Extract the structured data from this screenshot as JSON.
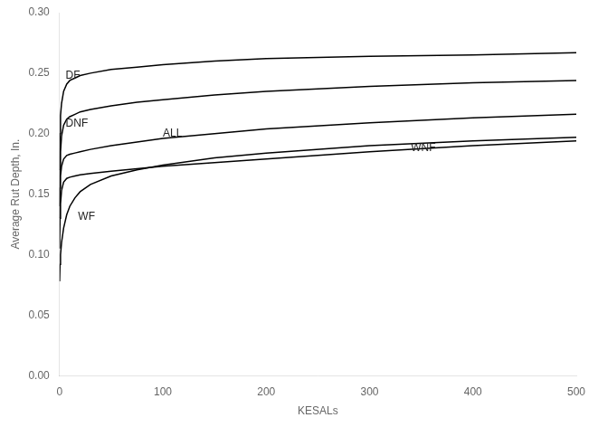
{
  "chart_data": {
    "type": "line",
    "title": "",
    "xlabel": "KESALs",
    "ylabel": "Average Rut Depth, In.",
    "xlim": [
      0,
      500
    ],
    "ylim": [
      0.0,
      0.3
    ],
    "xticks": [
      0,
      100,
      200,
      300,
      400,
      500
    ],
    "yticks": [
      {
        "value": 0,
        "label": "0.00"
      },
      0.05,
      {
        "value": 0.1,
        "label": "0.10"
      },
      0.15,
      {
        "value": 0.2,
        "label": "0.20"
      },
      0.25,
      {
        "value": 0.3,
        "label": "0.30"
      }
    ],
    "grid": false,
    "series": [
      {
        "name": "DF",
        "color": "#000000",
        "x": [
          0.1,
          0.5,
          1,
          2,
          4,
          7,
          10,
          15,
          20,
          30,
          50,
          75,
          100,
          150,
          200,
          300,
          400,
          500
        ],
        "values": [
          0.17,
          0.2,
          0.215,
          0.225,
          0.235,
          0.241,
          0.244,
          0.246,
          0.248,
          0.25,
          0.253,
          0.255,
          0.257,
          0.26,
          0.262,
          0.264,
          0.265,
          0.267
        ]
      },
      {
        "name": "DNF",
        "color": "#000000",
        "x": [
          0.1,
          0.5,
          1,
          2,
          4,
          7,
          10,
          15,
          20,
          30,
          50,
          75,
          100,
          150,
          200,
          300,
          400,
          500
        ],
        "values": [
          0.14,
          0.17,
          0.185,
          0.198,
          0.207,
          0.212,
          0.214,
          0.216,
          0.218,
          0.22,
          0.223,
          0.226,
          0.228,
          0.232,
          0.235,
          0.239,
          0.242,
          0.244
        ]
      },
      {
        "name": "ALL",
        "color": "#000000",
        "x": [
          0.1,
          0.5,
          1,
          2,
          4,
          7,
          10,
          15,
          20,
          30,
          50,
          75,
          100,
          150,
          200,
          300,
          400,
          500
        ],
        "values": [
          0.13,
          0.155,
          0.165,
          0.173,
          0.179,
          0.182,
          0.183,
          0.184,
          0.185,
          0.187,
          0.19,
          0.193,
          0.196,
          0.2,
          0.204,
          0.209,
          0.213,
          0.216
        ]
      },
      {
        "name": "WNF",
        "color": "#000000",
        "x": [
          0.1,
          0.5,
          1,
          2,
          4,
          7,
          10,
          15,
          20,
          30,
          50,
          75,
          100,
          150,
          200,
          250,
          300,
          400,
          500
        ],
        "values": [
          0.105,
          0.13,
          0.142,
          0.153,
          0.16,
          0.163,
          0.164,
          0.165,
          0.166,
          0.167,
          0.169,
          0.171,
          0.173,
          0.176,
          0.179,
          0.182,
          0.185,
          0.19,
          0.194
        ]
      },
      {
        "name": "WF",
        "color": "#000000",
        "x": [
          0.1,
          0.5,
          1,
          2,
          4,
          7,
          10,
          15,
          20,
          30,
          50,
          75,
          100,
          150,
          200,
          300,
          400,
          500
        ],
        "values": [
          0.078,
          0.092,
          0.1,
          0.11,
          0.122,
          0.133,
          0.14,
          0.147,
          0.152,
          0.158,
          0.165,
          0.17,
          0.174,
          0.18,
          0.184,
          0.19,
          0.194,
          0.197
        ]
      }
    ],
    "annotations": [
      {
        "text": "DF",
        "x": 6,
        "y": 0.248
      },
      {
        "text": "DNF",
        "x": 6,
        "y": 0.208
      },
      {
        "text": "ALL",
        "x": 100,
        "y": 0.2
      },
      {
        "text": "WNF",
        "x": 340,
        "y": 0.188
      },
      {
        "text": "WF",
        "x": 18,
        "y": 0.131
      }
    ]
  }
}
